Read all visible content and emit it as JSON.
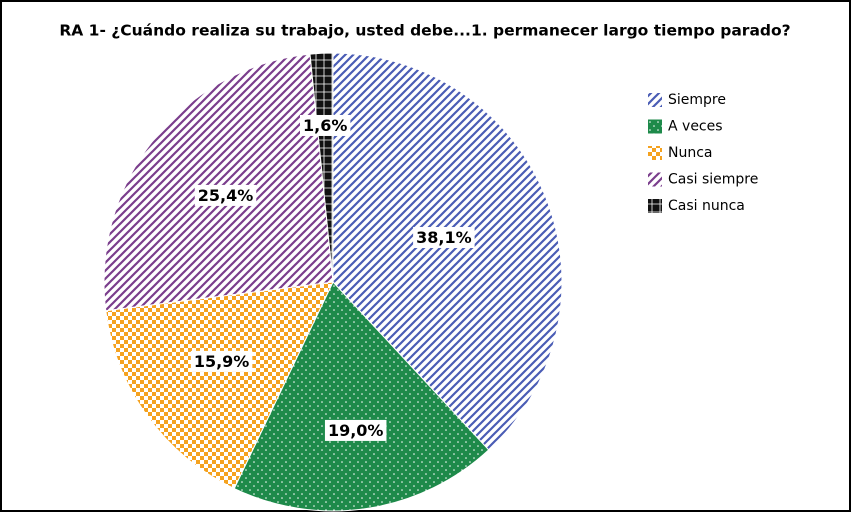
{
  "chart_data": {
    "type": "pie",
    "title": "RA 1- ¿Cuándo realiza su trabajo, usted debe...1. permanecer largo tiempo parado?",
    "categories": [
      "Siempre",
      "A veces",
      "Nunca",
      "Casi siempre",
      "Casi nunca"
    ],
    "values": [
      38.1,
      19.0,
      15.9,
      25.4,
      1.6
    ],
    "value_labels": [
      "38,1%",
      "19,0%",
      "15,9%",
      "25,4%",
      "1,6%"
    ],
    "colors": [
      "#4a5cb5",
      "#1e8a4a",
      "#f5a21f",
      "#7a3d8c",
      "#111111"
    ],
    "legend": "right"
  }
}
